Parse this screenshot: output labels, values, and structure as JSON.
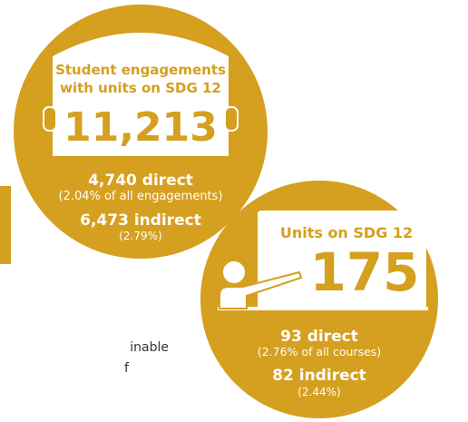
{
  "cards": [
    {
      "title_lines": [
        "Student engagements",
        "with units on SDG 12"
      ],
      "total": "11,213",
      "direct": "4,740 direct",
      "direct_note": "(2.04% of all engagements)",
      "indirect": "6,473 indirect",
      "indirect_note": "(2.79%)"
    },
    {
      "title_lines": [
        "Units on SDG 12"
      ],
      "total": "175",
      "direct": "93 direct",
      "direct_note": "(2.76% of all courses)",
      "indirect": "82 indirect",
      "indirect_note": "(2.44%)"
    }
  ],
  "fragments": [
    "inable",
    "f"
  ]
}
